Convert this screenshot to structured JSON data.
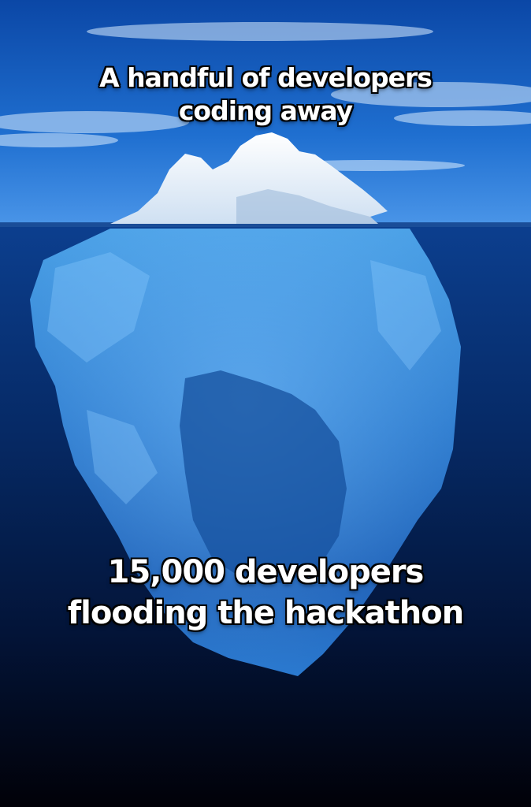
{
  "top_caption": {
    "line1": "A handful of developers",
    "line2": "coding away"
  },
  "bottom_caption": {
    "line1": "15,000 developers",
    "line2": "flooding the hackathon"
  },
  "colors": {
    "sky_top": "#0d4fb0",
    "sky_horizon": "#3d8be6",
    "water_top": "#0b3f8c",
    "water_bottom": "#02030a",
    "ice_above": "#f2f7fc",
    "ice_below": "#3d8fd8",
    "caption_fill": "#ffffff",
    "caption_stroke": "#000000"
  }
}
